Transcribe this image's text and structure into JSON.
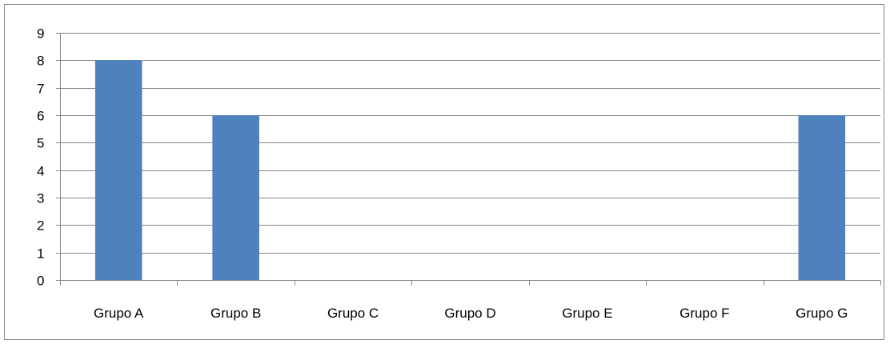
{
  "chart_data": {
    "type": "bar",
    "categories": [
      "Grupo A",
      "Grupo B",
      "Grupo C",
      "Grupo D",
      "Grupo E",
      "Grupo F",
      "Grupo G"
    ],
    "values": [
      8,
      6,
      0,
      0,
      0,
      0,
      6
    ],
    "title": "",
    "xlabel": "",
    "ylabel": "",
    "ylim": [
      0,
      9
    ],
    "yticks": [
      "0",
      "1",
      "2",
      "3",
      "4",
      "5",
      "6",
      "7",
      "8",
      "9"
    ],
    "grid": true,
    "legend": "none",
    "bar_color": "#4F81BD",
    "gridline_color": "#868686"
  }
}
